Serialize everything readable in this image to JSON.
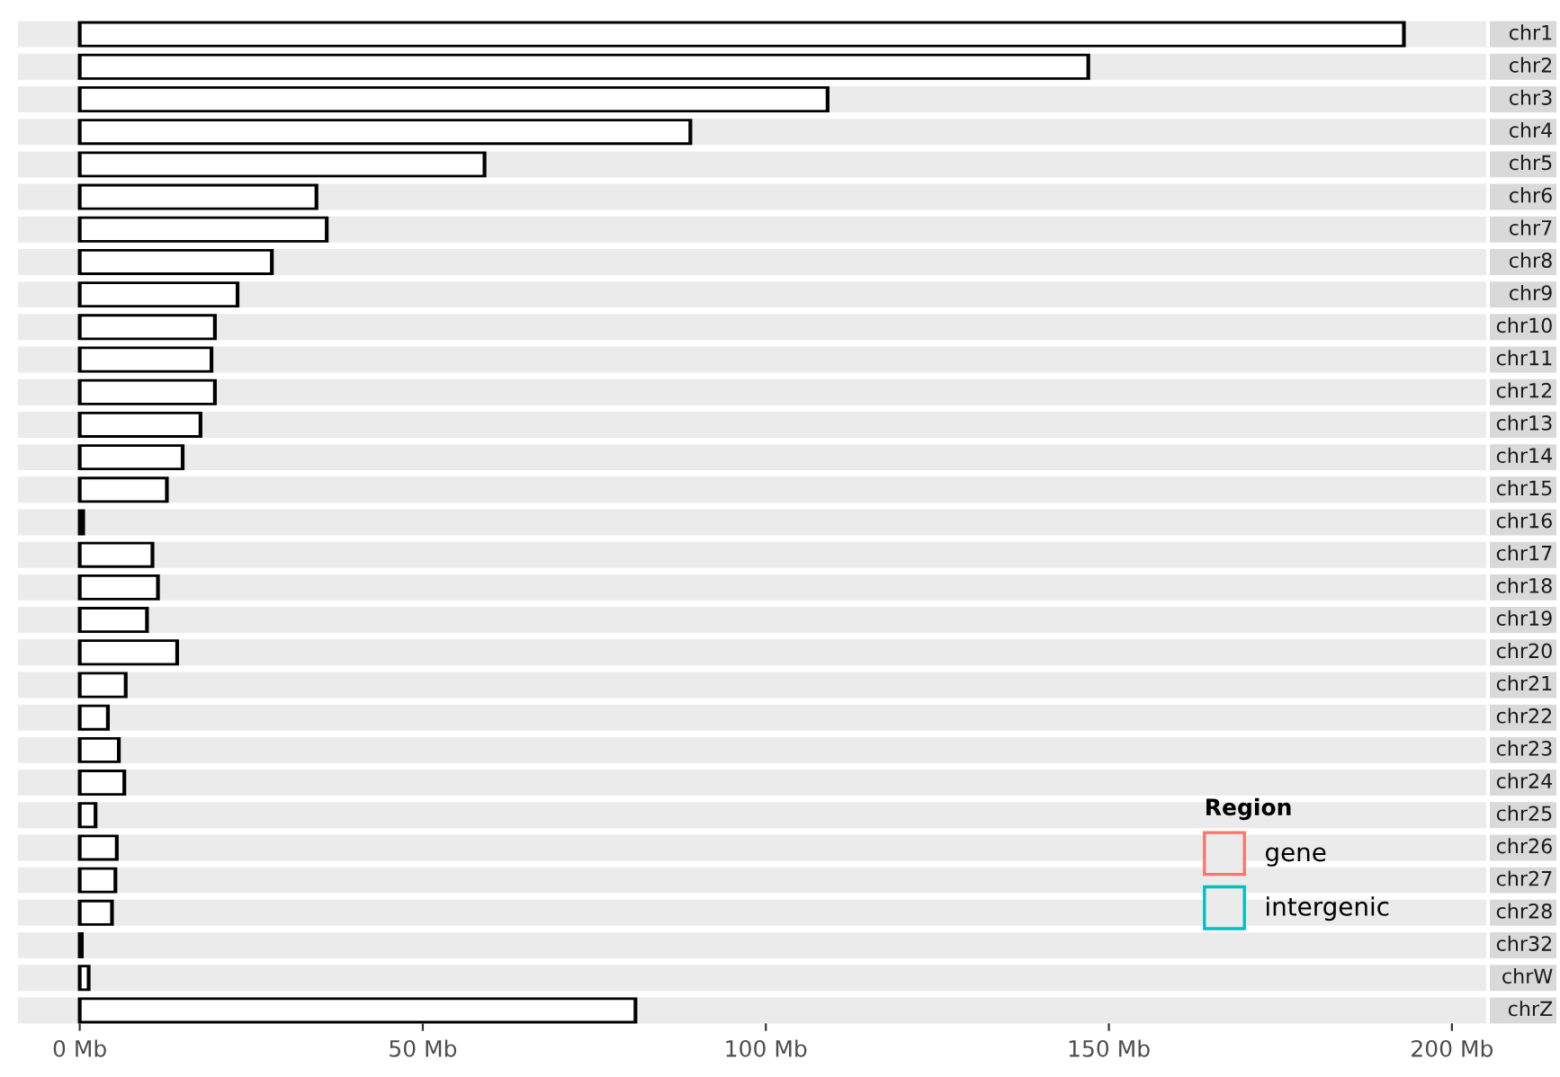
{
  "chart_data": {
    "type": "bar",
    "orientation": "horizontal",
    "categories": [
      "chr1",
      "chr2",
      "chr3",
      "chr4",
      "chr5",
      "chr6",
      "chr7",
      "chr8",
      "chr9",
      "chr10",
      "chr11",
      "chr12",
      "chr13",
      "chr14",
      "chr15",
      "chr16",
      "chr17",
      "chr18",
      "chr19",
      "chr20",
      "chr21",
      "chr22",
      "chr23",
      "chr24",
      "chr25",
      "chr26",
      "chr27",
      "chr28",
      "chr32",
      "chrW",
      "chrZ"
    ],
    "series": [
      {
        "color": "#ffffff",
        "values": [
          193,
          147,
          109,
          89,
          59,
          34.5,
          36,
          28,
          23,
          19.7,
          19.2,
          19.7,
          17.6,
          15,
          12.7,
          0.5,
          10.6,
          11.4,
          9.8,
          14.2,
          6.7,
          4.1,
          5.7,
          6.5,
          2.3,
          5.4,
          5.2,
          4.7,
          0.3,
          1.3,
          81
        ]
      },
      {
        "name": "gene",
        "color": "#f8766d",
        "values": [
          null,
          null,
          null,
          null,
          null,
          null,
          null,
          null,
          null,
          null,
          null,
          null,
          null,
          null,
          null,
          null,
          null,
          null,
          null,
          null,
          null,
          null,
          null,
          null,
          null,
          null,
          null,
          null,
          null,
          null,
          null
        ]
      },
      {
        "name": "intergenic",
        "color": "#00bfc4",
        "values": [
          null,
          null,
          null,
          null,
          null,
          null,
          null,
          null,
          null,
          null,
          null,
          null,
          null,
          null,
          null,
          null,
          null,
          null,
          null,
          null,
          null,
          null,
          null,
          null,
          null,
          null,
          null,
          null,
          null,
          null,
          null
        ]
      }
    ],
    "legend_title": "Region",
    "legend": "bottom right",
    "xlim": [
      -9,
      205
    ],
    "xticks": [
      {
        "value": 0,
        "label": "0 Mb"
      },
      {
        "value": 50,
        "label": "50 Mb"
      },
      {
        "value": 100,
        "label": "100 Mb"
      },
      {
        "value": 150,
        "label": "150 Mb"
      },
      {
        "value": 200,
        "label": "200 Mb"
      }
    ],
    "grid": false
  }
}
